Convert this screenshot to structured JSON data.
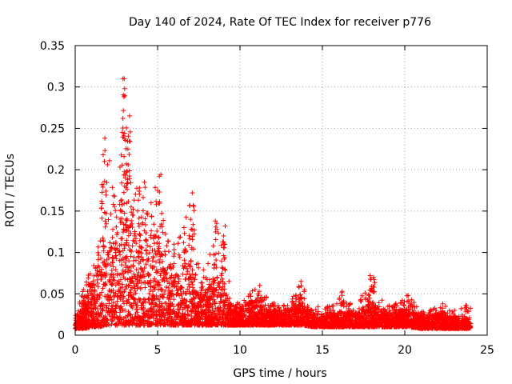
{
  "chart_data": {
    "type": "scatter",
    "title": "Day 140 of 2024, Rate Of TEC Index for receiver p776",
    "xlabel": "GPS time / hours",
    "ylabel": "ROTI / TECUs",
    "xlim": [
      0,
      25
    ],
    "ylim": [
      0,
      0.35
    ],
    "x_ticks": [
      0,
      5,
      10,
      15,
      20,
      25
    ],
    "y_ticks": [
      0,
      0.05,
      0.1,
      0.15,
      0.2,
      0.25,
      0.3,
      0.35
    ],
    "x_tick_labels": [
      "0",
      "5",
      "10",
      "15",
      "20",
      "25"
    ],
    "y_tick_labels": [
      "0",
      "0.05",
      "0.1",
      "0.15",
      "0.2",
      "0.25",
      "0.3",
      "0.35"
    ],
    "grid": true,
    "marker": "+",
    "color": "#ff0000",
    "x_range_of_points": [
      0,
      24
    ],
    "notable_points": [
      {
        "x": 2.9,
        "y": 0.31
      },
      {
        "x": 3.0,
        "y": 0.298
      },
      {
        "x": 2.9,
        "y": 0.262
      },
      {
        "x": 3.3,
        "y": 0.265
      },
      {
        "x": 1.8,
        "y": 0.238
      },
      {
        "x": 1.7,
        "y": 0.218
      },
      {
        "x": 3.2,
        "y": 0.225
      },
      {
        "x": 3.1,
        "y": 0.207
      },
      {
        "x": 3.0,
        "y": 0.18
      },
      {
        "x": 4.2,
        "y": 0.185
      },
      {
        "x": 5.2,
        "y": 0.194
      },
      {
        "x": 5.0,
        "y": 0.175
      },
      {
        "x": 2.4,
        "y": 0.168
      },
      {
        "x": 2.7,
        "y": 0.158
      },
      {
        "x": 3.9,
        "y": 0.178
      },
      {
        "x": 7.1,
        "y": 0.172
      },
      {
        "x": 7.0,
        "y": 0.14
      },
      {
        "x": 6.6,
        "y": 0.13
      },
      {
        "x": 1.7,
        "y": 0.182
      },
      {
        "x": 4.6,
        "y": 0.16
      },
      {
        "x": 8.5,
        "y": 0.138
      },
      {
        "x": 9.1,
        "y": 0.132
      },
      {
        "x": 9.0,
        "y": 0.12
      },
      {
        "x": 8.5,
        "y": 0.098
      },
      {
        "x": 1.7,
        "y": 0.115
      },
      {
        "x": 3.6,
        "y": 0.12
      },
      {
        "x": 6.0,
        "y": 0.11
      },
      {
        "x": 10.6,
        "y": 0.05
      },
      {
        "x": 11.2,
        "y": 0.06
      },
      {
        "x": 13.7,
        "y": 0.065
      },
      {
        "x": 16.2,
        "y": 0.053
      },
      {
        "x": 17.9,
        "y": 0.072
      },
      {
        "x": 18.1,
        "y": 0.07
      },
      {
        "x": 20.2,
        "y": 0.048
      },
      {
        "x": 22.3,
        "y": 0.038
      },
      {
        "x": 23.7,
        "y": 0.036
      },
      {
        "x": 0.5,
        "y": 0.055
      }
    ],
    "envelope": [
      {
        "x": 0.0,
        "low": 0.008,
        "high": 0.02,
        "max": 0.03
      },
      {
        "x": 0.5,
        "low": 0.008,
        "high": 0.035,
        "max": 0.055
      },
      {
        "x": 1.0,
        "low": 0.01,
        "high": 0.06,
        "max": 0.085
      },
      {
        "x": 1.5,
        "low": 0.01,
        "high": 0.08,
        "max": 0.115
      },
      {
        "x": 2.0,
        "low": 0.012,
        "high": 0.1,
        "max": 0.24
      },
      {
        "x": 2.5,
        "low": 0.012,
        "high": 0.12,
        "max": 0.17
      },
      {
        "x": 3.0,
        "low": 0.012,
        "high": 0.14,
        "max": 0.31
      },
      {
        "x": 3.5,
        "low": 0.012,
        "high": 0.13,
        "max": 0.2
      },
      {
        "x": 4.0,
        "low": 0.012,
        "high": 0.12,
        "max": 0.18
      },
      {
        "x": 4.5,
        "low": 0.012,
        "high": 0.11,
        "max": 0.185
      },
      {
        "x": 5.0,
        "low": 0.012,
        "high": 0.11,
        "max": 0.194
      },
      {
        "x": 5.5,
        "low": 0.012,
        "high": 0.08,
        "max": 0.12
      },
      {
        "x": 6.0,
        "low": 0.012,
        "high": 0.07,
        "max": 0.11
      },
      {
        "x": 6.5,
        "low": 0.012,
        "high": 0.08,
        "max": 0.13
      },
      {
        "x": 7.0,
        "low": 0.012,
        "high": 0.09,
        "max": 0.172
      },
      {
        "x": 7.5,
        "low": 0.012,
        "high": 0.05,
        "max": 0.08
      },
      {
        "x": 8.0,
        "low": 0.012,
        "high": 0.05,
        "max": 0.08
      },
      {
        "x": 8.5,
        "low": 0.012,
        "high": 0.07,
        "max": 0.138
      },
      {
        "x": 9.0,
        "low": 0.012,
        "high": 0.06,
        "max": 0.132
      },
      {
        "x": 9.5,
        "low": 0.012,
        "high": 0.03,
        "max": 0.04
      },
      {
        "x": 10.0,
        "low": 0.012,
        "high": 0.03,
        "max": 0.04
      },
      {
        "x": 10.5,
        "low": 0.012,
        "high": 0.04,
        "max": 0.05
      },
      {
        "x": 11.0,
        "low": 0.012,
        "high": 0.035,
        "max": 0.06
      },
      {
        "x": 12.0,
        "low": 0.012,
        "high": 0.03,
        "max": 0.04
      },
      {
        "x": 13.0,
        "low": 0.012,
        "high": 0.03,
        "max": 0.04
      },
      {
        "x": 13.7,
        "low": 0.012,
        "high": 0.04,
        "max": 0.065
      },
      {
        "x": 14.5,
        "low": 0.01,
        "high": 0.025,
        "max": 0.035
      },
      {
        "x": 15.5,
        "low": 0.01,
        "high": 0.025,
        "max": 0.035
      },
      {
        "x": 16.2,
        "low": 0.01,
        "high": 0.03,
        "max": 0.053
      },
      {
        "x": 17.0,
        "low": 0.01,
        "high": 0.025,
        "max": 0.035
      },
      {
        "x": 18.0,
        "low": 0.01,
        "high": 0.04,
        "max": 0.072
      },
      {
        "x": 19.0,
        "low": 0.01,
        "high": 0.025,
        "max": 0.035
      },
      {
        "x": 20.2,
        "low": 0.01,
        "high": 0.03,
        "max": 0.048
      },
      {
        "x": 21.0,
        "low": 0.008,
        "high": 0.022,
        "max": 0.03
      },
      {
        "x": 22.3,
        "low": 0.008,
        "high": 0.025,
        "max": 0.038
      },
      {
        "x": 23.0,
        "low": 0.008,
        "high": 0.02,
        "max": 0.03
      },
      {
        "x": 24.0,
        "low": 0.008,
        "high": 0.02,
        "max": 0.036
      }
    ]
  }
}
